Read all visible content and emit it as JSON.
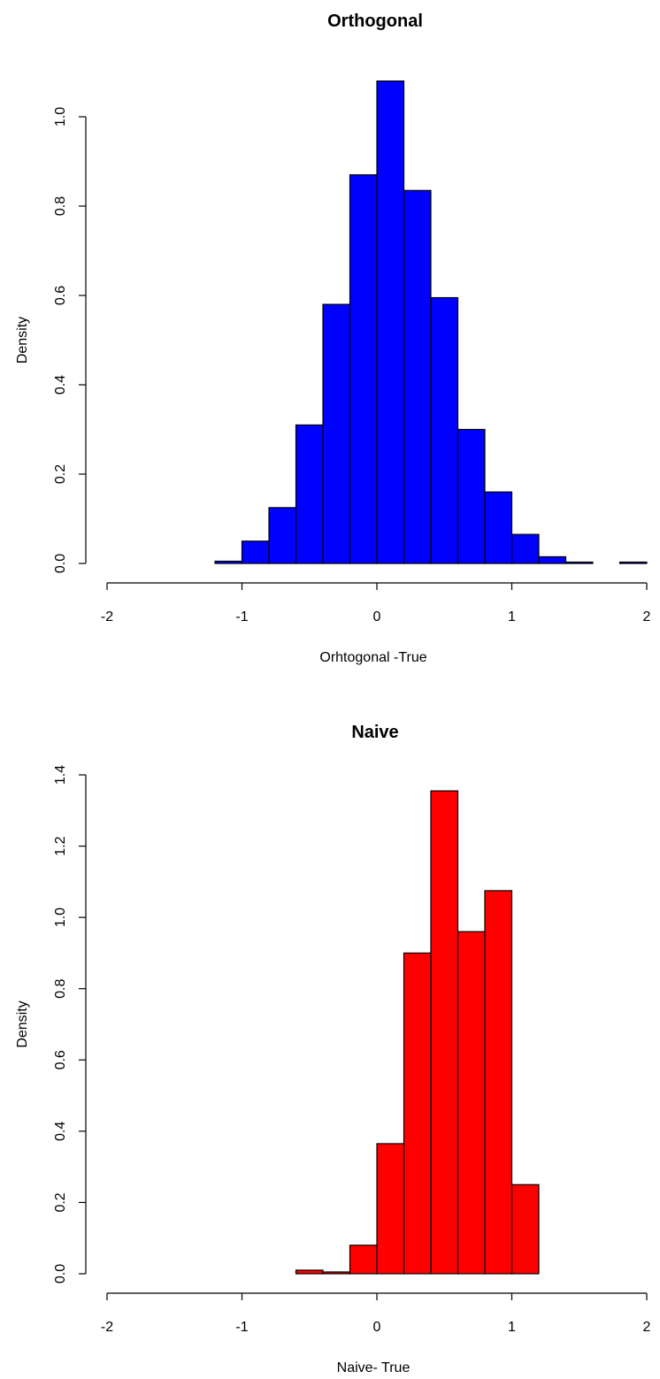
{
  "chart_data": [
    {
      "type": "bar",
      "title": "Orthogonal",
      "xlabel": "Orhtogonal -True",
      "ylabel": "Density",
      "xlim": [
        -2,
        2
      ],
      "ylim": [
        0,
        1.0
      ],
      "xticks": [
        -2,
        -1,
        0,
        1,
        2
      ],
      "xtick_labels": [
        "-2",
        "-1",
        "0",
        "1",
        "2"
      ],
      "yticks": [
        0.0,
        0.2,
        0.4,
        0.6,
        0.8,
        1.0
      ],
      "ytick_labels": [
        "0.0",
        "0.2",
        "0.4",
        "0.6",
        "0.8",
        "1.0"
      ],
      "bin_width": 0.2,
      "bins": [
        {
          "x0": -1.2,
          "x1": -1.0,
          "value": 0.005
        },
        {
          "x0": -1.0,
          "x1": -0.8,
          "value": 0.05
        },
        {
          "x0": -0.8,
          "x1": -0.6,
          "value": 0.125
        },
        {
          "x0": -0.6,
          "x1": -0.4,
          "value": 0.31
        },
        {
          "x0": -0.4,
          "x1": -0.2,
          "value": 0.58
        },
        {
          "x0": -0.2,
          "x1": 0.0,
          "value": 0.87
        },
        {
          "x0": 0.0,
          "x1": 0.2,
          "value": 1.08
        },
        {
          "x0": 0.2,
          "x1": 0.4,
          "value": 0.835
        },
        {
          "x0": 0.4,
          "x1": 0.6,
          "value": 0.595
        },
        {
          "x0": 0.6,
          "x1": 0.8,
          "value": 0.3
        },
        {
          "x0": 0.8,
          "x1": 1.0,
          "value": 0.16
        },
        {
          "x0": 1.0,
          "x1": 1.2,
          "value": 0.065
        },
        {
          "x0": 1.2,
          "x1": 1.4,
          "value": 0.015
        },
        {
          "x0": 1.4,
          "x1": 1.6,
          "value": 0.003
        },
        {
          "x0": 1.6,
          "x1": 1.8,
          "value": 0.0
        },
        {
          "x0": 1.8,
          "x1": 2.0,
          "value": 0.003
        }
      ],
      "colors": {
        "fill": "#0000ff",
        "stroke": "#000000"
      }
    },
    {
      "type": "bar",
      "title": "Naive",
      "xlabel": "Naive- True",
      "ylabel": "Density",
      "xlim": [
        -2,
        2
      ],
      "ylim": [
        0,
        1.4
      ],
      "xticks": [
        -2,
        -1,
        0,
        1,
        2
      ],
      "xtick_labels": [
        "-2",
        "-1",
        "0",
        "1",
        "2"
      ],
      "yticks": [
        0.0,
        0.2,
        0.4,
        0.6,
        0.8,
        1.0,
        1.2,
        1.4
      ],
      "ytick_labels": [
        "0.0",
        "0.2",
        "0.4",
        "0.6",
        "0.8",
        "1.0",
        "1.2",
        "1.4"
      ],
      "bin_width": 0.2,
      "bins": [
        {
          "x0": -0.6,
          "x1": -0.4,
          "value": 0.01
        },
        {
          "x0": -0.4,
          "x1": -0.2,
          "value": 0.005
        },
        {
          "x0": -0.2,
          "x1": 0.0,
          "value": 0.08
        },
        {
          "x0": 0.0,
          "x1": 0.2,
          "value": 0.365
        },
        {
          "x0": 0.2,
          "x1": 0.4,
          "value": 0.9
        },
        {
          "x0": 0.4,
          "x1": 0.6,
          "value": 1.355
        },
        {
          "x0": 0.6,
          "x1": 0.8,
          "value": 0.96
        },
        {
          "x0": 0.8,
          "x1": 1.0,
          "value": 1.075
        },
        {
          "x0": 1.0,
          "x1": 1.2,
          "value": 0.25
        }
      ],
      "colors": {
        "fill": "#ff0000",
        "stroke": "#000000"
      }
    }
  ]
}
